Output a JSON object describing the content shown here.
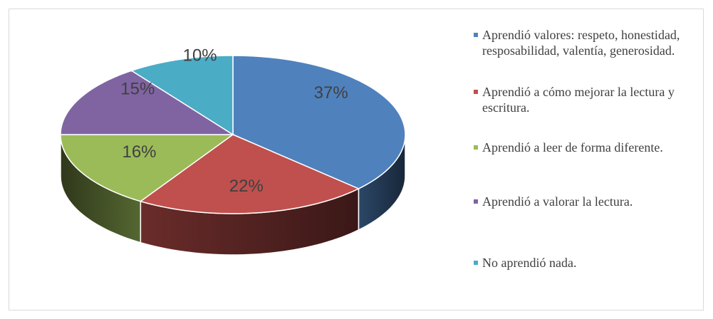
{
  "chart_data": {
    "type": "pie",
    "categories": [
      "Aprendió valores: respeto, honestidad, resposabilidad, valentía, generosidad.",
      "Aprendió a cómo mejorar la lectura y escritura.",
      "Aprendió a leer de forma diferente.",
      "Aprendió a valorar la lectura.",
      "No aprendió nada."
    ],
    "values": [
      37,
      22,
      16,
      15,
      10
    ],
    "value_labels": [
      "37%",
      "22%",
      "16%",
      "15%",
      "10%"
    ],
    "colors": [
      "#4f81bd",
      "#c0504d",
      "#9bbb59",
      "#8064a2",
      "#4bacc6"
    ],
    "legend": "right"
  }
}
